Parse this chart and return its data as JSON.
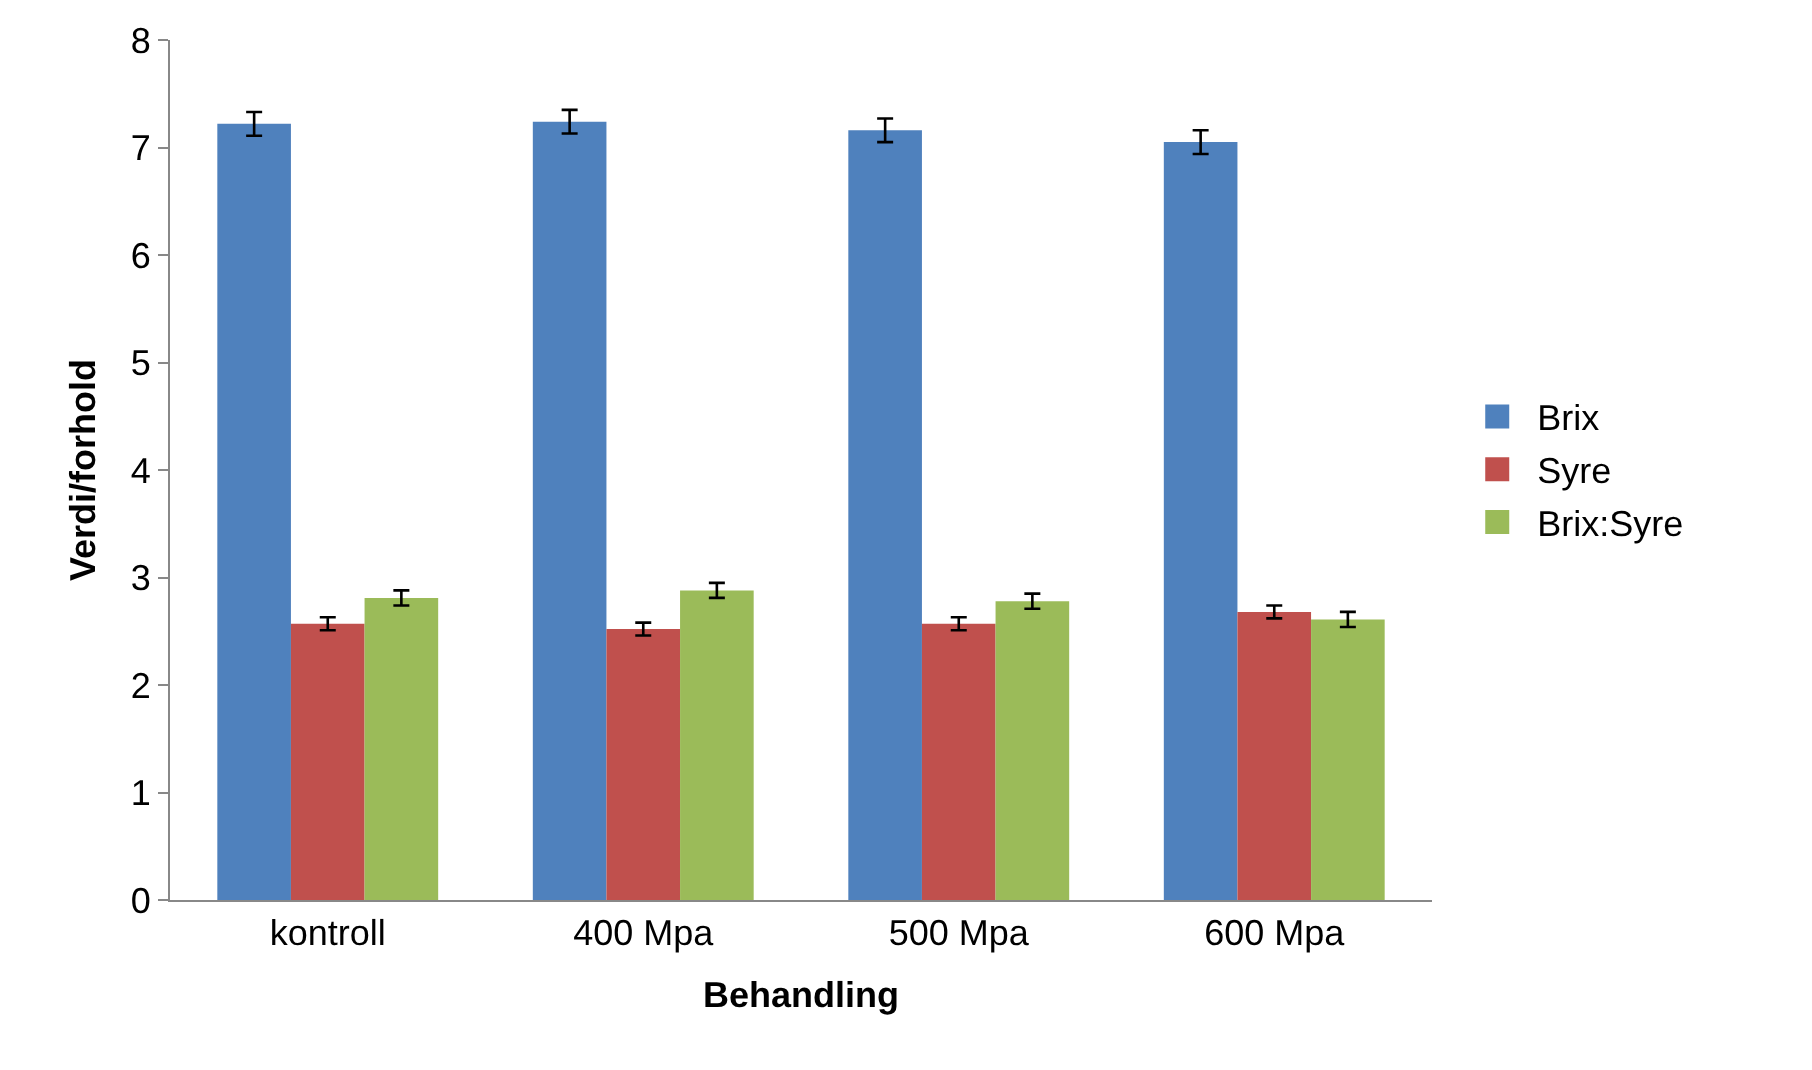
{
  "chart_data": {
    "type": "bar",
    "xlabel": "Behandling",
    "ylabel": "Verdi/forhold",
    "categories": [
      "kontroll",
      "400 Mpa",
      "500 Mpa",
      "600 Mpa"
    ],
    "series": [
      {
        "name": "Brix",
        "color": "#4f81bd",
        "values": [
          7.22,
          7.24,
          7.16,
          7.05
        ],
        "errors": [
          0.11,
          0.11,
          0.11,
          0.11
        ]
      },
      {
        "name": "Syre",
        "color": "#c0504d",
        "values": [
          2.57,
          2.52,
          2.57,
          2.68
        ],
        "errors": [
          0.06,
          0.06,
          0.06,
          0.06
        ]
      },
      {
        "name": "Brix:Syre",
        "color": "#9bbb59",
        "values": [
          2.81,
          2.88,
          2.78,
          2.61
        ],
        "errors": [
          0.07,
          0.07,
          0.07,
          0.07
        ]
      }
    ],
    "ylim": [
      0,
      8
    ],
    "yticks": [
      0,
      1,
      2,
      3,
      4,
      5,
      6,
      7,
      8
    ],
    "grid": false,
    "legend": "right"
  }
}
